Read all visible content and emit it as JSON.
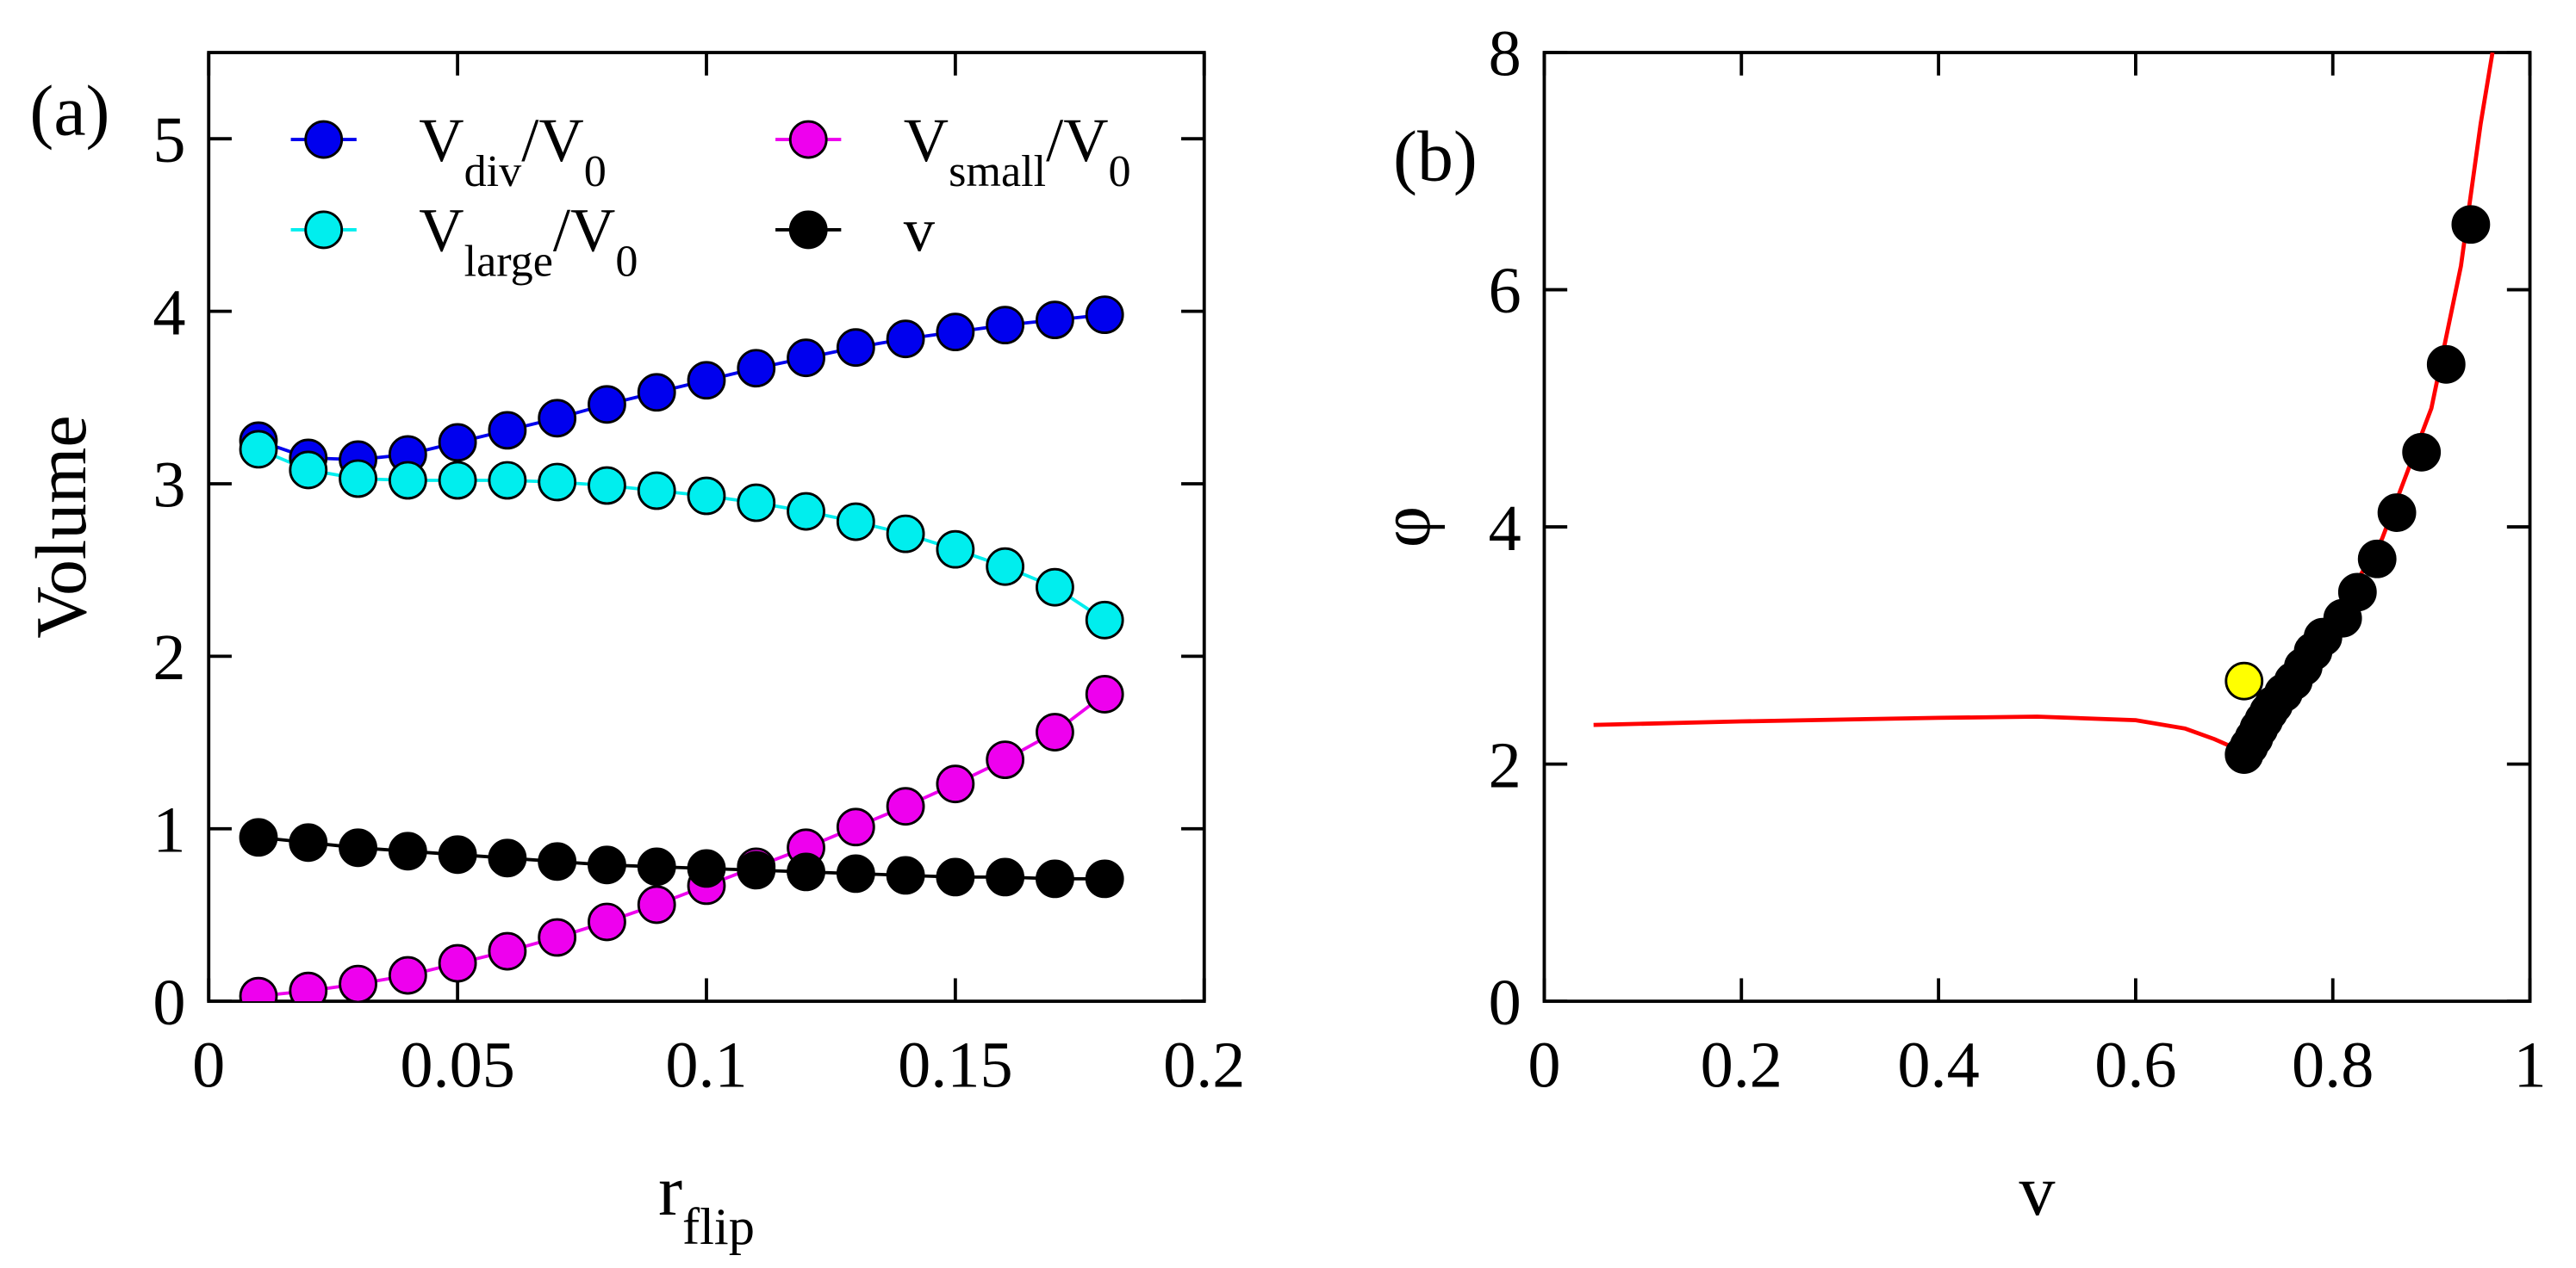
{
  "chart_data": [
    {
      "type": "line",
      "panel_label": "(a)",
      "ylabel": "Volume",
      "xlabel": [
        {
          "text": "r"
        },
        {
          "text": "flip",
          "sub": true
        }
      ],
      "xlim": [
        0,
        0.2
      ],
      "xticks": [
        0,
        0.05,
        0.1,
        0.15,
        0.2
      ],
      "ylim": [
        0,
        5.5
      ],
      "yticks": [
        0,
        1,
        2,
        3,
        4,
        5
      ],
      "x": [
        0.01,
        0.02,
        0.03,
        0.04,
        0.05,
        0.06,
        0.07,
        0.08,
        0.09,
        0.1,
        0.11,
        0.12,
        0.13,
        0.14,
        0.15,
        0.16,
        0.17,
        0.18
      ],
      "series": [
        {
          "name": [
            {
              "text": "V"
            },
            {
              "text": "div",
              "sub": true
            },
            {
              "text": "/V"
            },
            {
              "text": "0",
              "sub": true
            }
          ],
          "color": "#0000ee",
          "values": [
            3.25,
            3.15,
            3.14,
            3.17,
            3.24,
            3.31,
            3.38,
            3.46,
            3.53,
            3.6,
            3.67,
            3.73,
            3.79,
            3.84,
            3.88,
            3.92,
            3.95,
            3.98
          ]
        },
        {
          "name": [
            {
              "text": "V"
            },
            {
              "text": "small",
              "sub": true
            },
            {
              "text": "/V"
            },
            {
              "text": "0",
              "sub": true
            }
          ],
          "color": "#ee00ee",
          "values": [
            0.03,
            0.06,
            0.1,
            0.15,
            0.22,
            0.29,
            0.37,
            0.46,
            0.56,
            0.67,
            0.78,
            0.89,
            1.01,
            1.13,
            1.26,
            1.4,
            1.56,
            1.78
          ]
        },
        {
          "name": [
            {
              "text": "V"
            },
            {
              "text": "large",
              "sub": true
            },
            {
              "text": "/V"
            },
            {
              "text": "0",
              "sub": true
            }
          ],
          "color": "#00eeee",
          "values": [
            3.2,
            3.08,
            3.03,
            3.02,
            3.02,
            3.02,
            3.01,
            2.99,
            2.96,
            2.93,
            2.89,
            2.84,
            2.78,
            2.71,
            2.62,
            2.52,
            2.4,
            2.21
          ]
        },
        {
          "name": [
            {
              "text": "v"
            }
          ],
          "color": "#000000",
          "values": [
            0.95,
            0.92,
            0.89,
            0.87,
            0.85,
            0.83,
            0.81,
            0.79,
            0.78,
            0.77,
            0.76,
            0.75,
            0.74,
            0.73,
            0.72,
            0.72,
            0.71,
            0.71
          ]
        }
      ]
    },
    {
      "type": "scatter",
      "panel_label": "(b)",
      "ylabel": "φ",
      "xlabel": [
        {
          "text": "v"
        }
      ],
      "xlim": [
        0,
        1
      ],
      "xticks": [
        0,
        0.2,
        0.4,
        0.6,
        0.8,
        1
      ],
      "ylim": [
        0,
        8
      ],
      "yticks": [
        0,
        2,
        4,
        6,
        8
      ],
      "series": [
        {
          "mode": "line",
          "color": "#ff0000",
          "x": [
            0.05,
            0.2,
            0.4,
            0.5,
            0.6,
            0.65,
            0.68,
            0.71,
            0.75,
            0.8,
            0.85,
            0.9,
            0.93,
            0.95,
            0.962
          ],
          "values": [
            2.33,
            2.36,
            2.39,
            2.4,
            2.37,
            2.3,
            2.21,
            2.1,
            2.55,
            3.2,
            3.9,
            5.0,
            6.2,
            7.4,
            8.0
          ]
        },
        {
          "mode": "markers",
          "color": "#000000",
          "x": [
            0.71,
            0.715,
            0.72,
            0.725,
            0.73,
            0.735,
            0.74,
            0.75,
            0.76,
            0.77,
            0.78,
            0.79,
            0.81,
            0.825,
            0.845,
            0.865,
            0.89,
            0.915,
            0.94
          ],
          "values": [
            2.08,
            2.15,
            2.22,
            2.3,
            2.37,
            2.44,
            2.5,
            2.6,
            2.7,
            2.82,
            2.95,
            3.07,
            3.23,
            3.45,
            3.73,
            4.12,
            4.63,
            5.37,
            6.55
          ]
        },
        {
          "mode": "markers",
          "color": "#ffff00",
          "x": [
            0.71
          ],
          "values": [
            2.7
          ]
        }
      ]
    }
  ]
}
